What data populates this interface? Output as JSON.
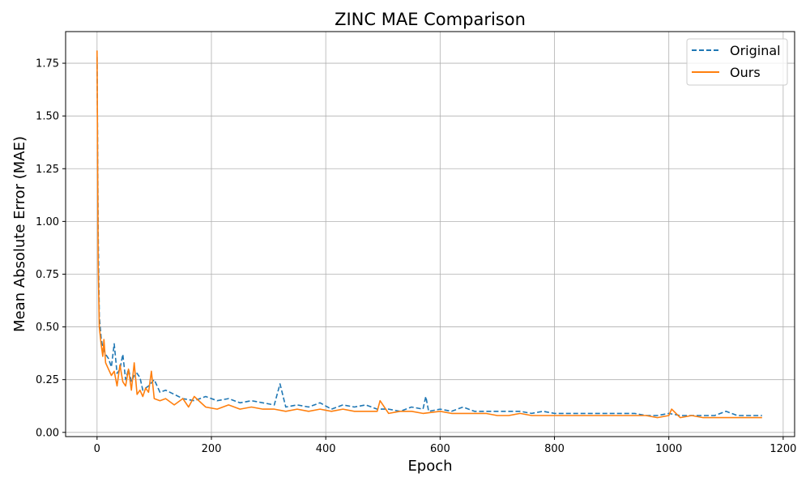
{
  "chart_data": {
    "type": "line",
    "title": "ZINC MAE Comparison",
    "xlabel": "Epoch",
    "ylabel": "Mean Absolute Error (MAE)",
    "xlim": [
      -55,
      1220
    ],
    "ylim": [
      -0.02,
      1.9
    ],
    "xticks": [
      0,
      200,
      400,
      600,
      800,
      1000,
      1200
    ],
    "yticks": [
      0.0,
      0.25,
      0.5,
      0.75,
      1.0,
      1.25,
      1.5,
      1.75
    ],
    "xtick_labels": [
      "0",
      "200",
      "400",
      "600",
      "800",
      "1000",
      "1200"
    ],
    "ytick_labels": [
      "0.00",
      "0.25",
      "0.50",
      "0.75",
      "1.00",
      "1.25",
      "1.50",
      "1.75"
    ],
    "grid": true,
    "legend_position": "top-right",
    "series": [
      {
        "name": "Original",
        "color": "#1f77b4",
        "style": "dashed",
        "x": [
          0,
          2,
          4,
          7,
          10,
          15,
          20,
          25,
          30,
          35,
          40,
          45,
          50,
          55,
          60,
          65,
          70,
          75,
          80,
          90,
          100,
          110,
          120,
          135,
          150,
          170,
          190,
          210,
          230,
          250,
          270,
          290,
          310,
          320,
          330,
          350,
          370,
          390,
          410,
          430,
          450,
          470,
          490,
          510,
          530,
          550,
          570,
          575,
          580,
          600,
          620,
          640,
          660,
          680,
          700,
          720,
          740,
          760,
          780,
          800,
          820,
          840,
          860,
          880,
          900,
          920,
          940,
          960,
          980,
          1000,
          1020,
          1040,
          1060,
          1080,
          1100,
          1120,
          1140,
          1163
        ],
        "values": [
          1.78,
          0.95,
          0.55,
          0.45,
          0.4,
          0.37,
          0.35,
          0.31,
          0.42,
          0.28,
          0.3,
          0.37,
          0.25,
          0.3,
          0.24,
          0.27,
          0.28,
          0.26,
          0.2,
          0.22,
          0.25,
          0.19,
          0.2,
          0.18,
          0.16,
          0.15,
          0.17,
          0.15,
          0.16,
          0.14,
          0.15,
          0.14,
          0.13,
          0.23,
          0.12,
          0.13,
          0.12,
          0.14,
          0.11,
          0.13,
          0.12,
          0.13,
          0.11,
          0.11,
          0.1,
          0.12,
          0.11,
          0.17,
          0.1,
          0.11,
          0.1,
          0.12,
          0.1,
          0.1,
          0.1,
          0.1,
          0.1,
          0.09,
          0.1,
          0.09,
          0.09,
          0.09,
          0.09,
          0.09,
          0.09,
          0.09,
          0.09,
          0.08,
          0.08,
          0.09,
          0.08,
          0.08,
          0.08,
          0.08,
          0.1,
          0.08,
          0.08,
          0.08
        ]
      },
      {
        "name": "Ours",
        "color": "#ff7f0e",
        "style": "solid",
        "x": [
          0,
          2,
          4,
          7,
          10,
          12,
          15,
          20,
          25,
          30,
          35,
          40,
          45,
          50,
          55,
          60,
          65,
          70,
          75,
          80,
          85,
          90,
          95,
          100,
          110,
          120,
          135,
          150,
          160,
          170,
          190,
          210,
          230,
          250,
          270,
          290,
          310,
          330,
          350,
          370,
          390,
          410,
          430,
          450,
          470,
          490,
          495,
          510,
          530,
          550,
          570,
          600,
          620,
          640,
          660,
          680,
          700,
          720,
          740,
          760,
          780,
          800,
          820,
          840,
          860,
          880,
          900,
          920,
          940,
          960,
          980,
          1000,
          1005,
          1020,
          1040,
          1060,
          1080,
          1100,
          1120,
          1140,
          1163
        ],
        "values": [
          1.81,
          0.8,
          0.5,
          0.42,
          0.36,
          0.44,
          0.33,
          0.3,
          0.27,
          0.29,
          0.22,
          0.32,
          0.24,
          0.22,
          0.3,
          0.2,
          0.33,
          0.18,
          0.2,
          0.17,
          0.21,
          0.19,
          0.29,
          0.16,
          0.15,
          0.16,
          0.13,
          0.16,
          0.12,
          0.17,
          0.12,
          0.11,
          0.13,
          0.11,
          0.12,
          0.11,
          0.11,
          0.1,
          0.11,
          0.1,
          0.11,
          0.1,
          0.11,
          0.1,
          0.1,
          0.1,
          0.15,
          0.09,
          0.1,
          0.1,
          0.09,
          0.1,
          0.09,
          0.09,
          0.09,
          0.09,
          0.08,
          0.08,
          0.09,
          0.08,
          0.08,
          0.08,
          0.08,
          0.08,
          0.08,
          0.08,
          0.08,
          0.08,
          0.08,
          0.08,
          0.07,
          0.08,
          0.11,
          0.07,
          0.08,
          0.07,
          0.07,
          0.07,
          0.07,
          0.07,
          0.07
        ]
      }
    ]
  }
}
